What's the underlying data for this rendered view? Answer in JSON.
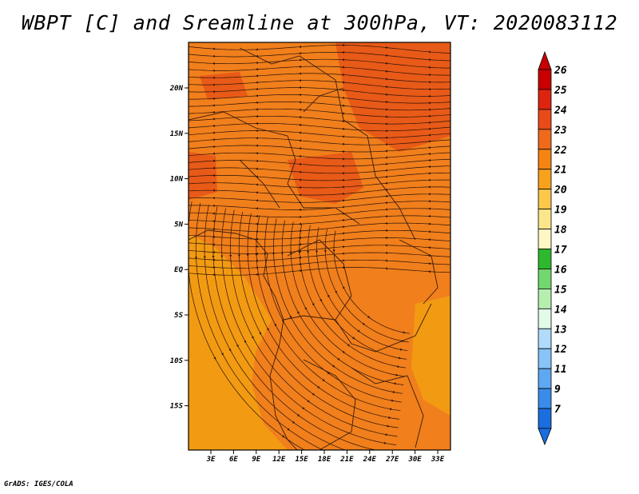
{
  "title": "WBPT [C] and Sreamline at 300hPa, VT: 2020083112",
  "footer": "GrADS: IGES/COLA",
  "map": {
    "lat_labels": [
      "20N",
      "15N",
      "10N",
      "5N",
      "EQ",
      "5S",
      "10S",
      "15S"
    ],
    "lon_labels": [
      "3E",
      "6E",
      "9E",
      "12E",
      "15E",
      "18E",
      "21E",
      "24E",
      "27E",
      "30E",
      "33E"
    ],
    "ocean_color": "#f29b12",
    "land_color": "#f07f1c",
    "hot_color": "#e85a18"
  },
  "colorbar": {
    "levels": [
      "26",
      "25",
      "24",
      "23",
      "22",
      "21",
      "20",
      "19",
      "18",
      "17",
      "16",
      "15",
      "14",
      "13",
      "12",
      "11",
      "9",
      "7"
    ],
    "colors": [
      "#c80000",
      "#dc2410",
      "#e84a18",
      "#f06a1c",
      "#f58412",
      "#f8a21c",
      "#fbc84a",
      "#fbe78a",
      "#fef7c4",
      "#2db82d",
      "#71d76e",
      "#b6eeae",
      "#e2fbe9",
      "#b0dbfb",
      "#87c4f8",
      "#5ea8f2",
      "#3a8cea",
      "#1a6ee0"
    ]
  }
}
